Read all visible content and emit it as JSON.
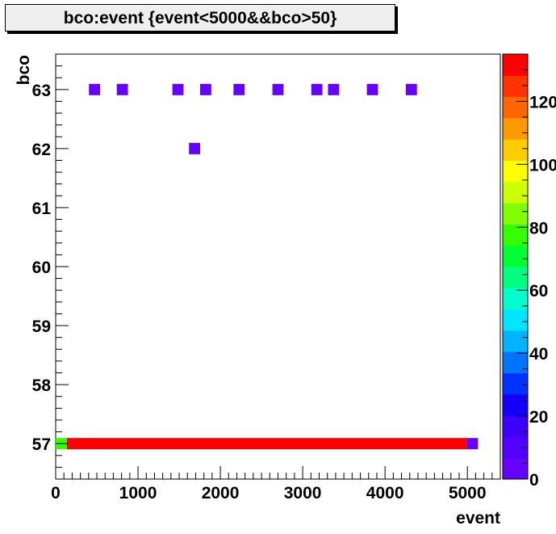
{
  "chart_data": {
    "type": "heatmap",
    "title": "bco:event {event<5000&&bco>50}",
    "xlabel": "event",
    "ylabel": "bco",
    "xlim": [
      0,
      5400
    ],
    "ylim": [
      56.4,
      63.6
    ],
    "x_ticks": [
      "0",
      "1000",
      "2000",
      "3000",
      "4000",
      "5000"
    ],
    "y_ticks": [
      "57",
      "58",
      "59",
      "60",
      "61",
      "62",
      "63"
    ],
    "z_ticks": [
      "0",
      "20",
      "40",
      "60",
      "80",
      "100",
      "120"
    ],
    "zlim": [
      0,
      135
    ],
    "palette": [
      "#6600ff",
      "#5200ff",
      "#3d00ff",
      "#1400ff",
      "#0033ff",
      "#0073ff",
      "#00b3ff",
      "#00e6ff",
      "#00ffcc",
      "#00ff80",
      "#00ff33",
      "#33ff00",
      "#80ff00",
      "#ccff00",
      "#ffff00",
      "#ffcc00",
      "#ff9900",
      "#ff6600",
      "#ff3300",
      "#ff0000"
    ],
    "cell_width": 135,
    "cells": [
      {
        "x": 472,
        "y": 63,
        "z": 1
      },
      {
        "x": 810,
        "y": 63,
        "z": 1
      },
      {
        "x": 1485,
        "y": 63,
        "z": 1
      },
      {
        "x": 1822,
        "y": 63,
        "z": 1
      },
      {
        "x": 2227,
        "y": 63,
        "z": 1
      },
      {
        "x": 2700,
        "y": 63,
        "z": 1
      },
      {
        "x": 3172,
        "y": 63,
        "z": 1
      },
      {
        "x": 3375,
        "y": 63,
        "z": 1
      },
      {
        "x": 3847,
        "y": 63,
        "z": 1
      },
      {
        "x": 4320,
        "y": 63,
        "z": 1
      },
      {
        "x": 1687,
        "y": 62,
        "z": 1
      },
      {
        "x": 67,
        "y": 57,
        "z": 80
      },
      {
        "x": 2565,
        "y": 57,
        "z": 135,
        "x_end": 4995
      },
      {
        "x": 5062,
        "y": 57,
        "z": 1
      }
    ]
  }
}
